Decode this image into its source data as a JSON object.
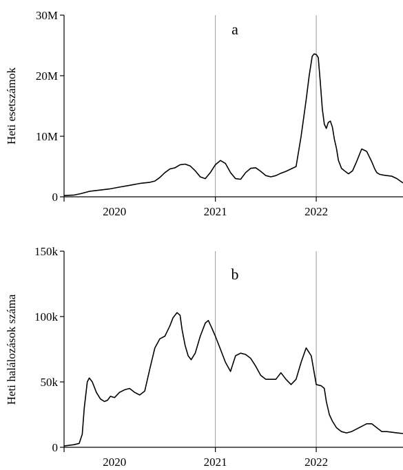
{
  "chart_data": [
    {
      "type": "line",
      "panel_label": "a",
      "title": "",
      "xlabel": "",
      "ylabel": "Heti esetszámok",
      "x_tick_labels": [
        "2020",
        "2021",
        "2022"
      ],
      "x_tick_values": [
        2020.0,
        2021.0,
        2022.0
      ],
      "x_grid_values": [
        2021.0,
        2022.0
      ],
      "xlim": [
        2019.5,
        2022.86
      ],
      "ylim": [
        0,
        30000000
      ],
      "y_tick_values": [
        0,
        10000000,
        20000000,
        30000000
      ],
      "y_tick_labels": [
        "0",
        "10M",
        "20M",
        "30M"
      ],
      "grid": "vertical",
      "series": [
        {
          "x": [
            2019.5,
            2019.6,
            2019.66,
            2019.75,
            2019.85,
            2019.95,
            2020.05,
            2020.15,
            2020.25,
            2020.35,
            2020.4,
            2020.45,
            2020.5,
            2020.55,
            2020.6,
            2020.65,
            2020.7,
            2020.75,
            2020.8,
            2020.85,
            2020.9,
            2020.95,
            2021.0,
            2021.05,
            2021.1,
            2021.15,
            2021.2,
            2021.25,
            2021.3,
            2021.35,
            2021.4,
            2021.45,
            2021.5,
            2021.55,
            2021.6,
            2021.65,
            2021.7,
            2021.75,
            2021.8,
            2021.85,
            2021.9,
            2021.93,
            2021.96,
            2021.98,
            2022.0,
            2022.02,
            2022.04,
            2022.06,
            2022.08,
            2022.1,
            2022.12,
            2022.14,
            2022.16,
            2022.18,
            2022.2,
            2022.22,
            2022.25,
            2022.28,
            2022.32,
            2022.36,
            2022.4,
            2022.45,
            2022.5,
            2022.55,
            2022.58,
            2022.6,
            2022.63,
            2022.66,
            2022.7,
            2022.75,
            2022.8,
            2022.86
          ],
          "y": [
            200000,
            300000,
            500000,
            900000,
            1100000,
            1300000,
            1600000,
            1900000,
            2200000,
            2400000,
            2600000,
            3200000,
            4000000,
            4600000,
            4800000,
            5300000,
            5400000,
            5100000,
            4300000,
            3300000,
            3000000,
            4000000,
            5300000,
            6000000,
            5500000,
            4000000,
            3000000,
            2900000,
            4000000,
            4700000,
            4800000,
            4200000,
            3500000,
            3300000,
            3500000,
            3900000,
            4200000,
            4600000,
            5000000,
            10000000,
            16000000,
            20000000,
            23200000,
            23600000,
            23500000,
            23000000,
            19000000,
            14500000,
            12000000,
            11300000,
            12300000,
            12500000,
            11500000,
            9500000,
            8000000,
            6000000,
            4700000,
            4300000,
            3800000,
            4300000,
            5800000,
            7900000,
            7500000,
            5800000,
            4600000,
            4000000,
            3700000,
            3600000,
            3500000,
            3400000,
            3000000,
            2300000
          ]
        }
      ]
    },
    {
      "type": "line",
      "panel_label": "b",
      "title": "",
      "xlabel": "",
      "ylabel": "Heti halálozások száma",
      "x_tick_labels": [
        "2020",
        "2021",
        "2022"
      ],
      "x_tick_values": [
        2020.0,
        2021.0,
        2022.0
      ],
      "x_grid_values": [
        2021.0,
        2022.0
      ],
      "xlim": [
        2019.5,
        2022.86
      ],
      "ylim": [
        0,
        150000
      ],
      "y_tick_values": [
        0,
        50000,
        100000,
        150000
      ],
      "y_tick_labels": [
        "0",
        "50k",
        "100k",
        "150k"
      ],
      "grid": "vertical",
      "series": [
        {
          "x": [
            2019.5,
            2019.6,
            2019.65,
            2019.68,
            2019.7,
            2019.73,
            2019.75,
            2019.78,
            2019.82,
            2019.86,
            2019.9,
            2019.93,
            2019.96,
            2020.0,
            2020.05,
            2020.1,
            2020.15,
            2020.2,
            2020.25,
            2020.3,
            2020.35,
            2020.4,
            2020.45,
            2020.5,
            2020.55,
            2020.58,
            2020.62,
            2020.65,
            2020.67,
            2020.7,
            2020.73,
            2020.76,
            2020.8,
            2020.85,
            2020.9,
            2020.93,
            2020.96,
            2021.0,
            2021.05,
            2021.1,
            2021.15,
            2021.2,
            2021.25,
            2021.3,
            2021.35,
            2021.4,
            2021.45,
            2021.5,
            2021.55,
            2021.6,
            2021.65,
            2021.7,
            2021.75,
            2021.8,
            2021.85,
            2021.9,
            2021.95,
            2022.0,
            2022.05,
            2022.08,
            2022.1,
            2022.13,
            2022.16,
            2022.2,
            2022.25,
            2022.3,
            2022.35,
            2022.4,
            2022.5,
            2022.55,
            2022.6,
            2022.65,
            2022.7,
            2022.8,
            2022.86
          ],
          "y": [
            1000,
            2000,
            3000,
            10000,
            30000,
            50000,
            53000,
            50000,
            42000,
            37000,
            35000,
            36000,
            39000,
            38000,
            42000,
            44000,
            45000,
            42000,
            40000,
            43000,
            60000,
            76000,
            83000,
            85000,
            93000,
            99000,
            103000,
            101000,
            90000,
            78000,
            70000,
            67000,
            72000,
            85000,
            95000,
            97000,
            92000,
            85000,
            75000,
            65000,
            58000,
            70000,
            72000,
            71000,
            68000,
            62000,
            55000,
            52000,
            52000,
            52000,
            57000,
            52000,
            48000,
            52000,
            65000,
            76000,
            70000,
            48000,
            47000,
            45000,
            35000,
            25000,
            20000,
            15000,
            12000,
            11000,
            12000,
            14000,
            18000,
            18000,
            15000,
            12000,
            12000,
            11000,
            10500
          ]
        }
      ]
    }
  ]
}
